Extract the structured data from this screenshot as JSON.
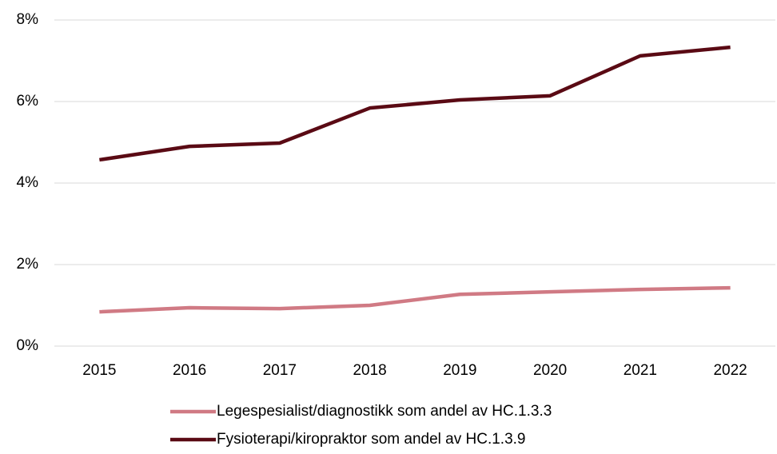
{
  "chart_data": {
    "type": "line",
    "categories": [
      "2015",
      "2016",
      "2017",
      "2018",
      "2019",
      "2020",
      "2021",
      "2022"
    ],
    "series": [
      {
        "name": "Legespesialist/diagnostikk som andel av HC.1.3.3",
        "color": "#d07a84",
        "values": [
          0.84,
          0.94,
          0.92,
          1.0,
          1.27,
          1.33,
          1.39,
          1.43
        ]
      },
      {
        "name": "Fysioterapi/kiropraktor som andel av HC.1.3.9",
        "color": "#5a0a14",
        "values": [
          4.57,
          4.9,
          4.98,
          5.84,
          6.04,
          6.14,
          7.12,
          7.33
        ]
      }
    ],
    "ylim": [
      0,
      8
    ],
    "yticks": [
      {
        "value": 0,
        "label": "0%"
      },
      {
        "value": 2,
        "label": "2%"
      },
      {
        "value": 4,
        "label": "4%"
      },
      {
        "value": 6,
        "label": "6%"
      },
      {
        "value": 8,
        "label": "8%"
      }
    ],
    "grid": true,
    "legend": "bottom"
  }
}
